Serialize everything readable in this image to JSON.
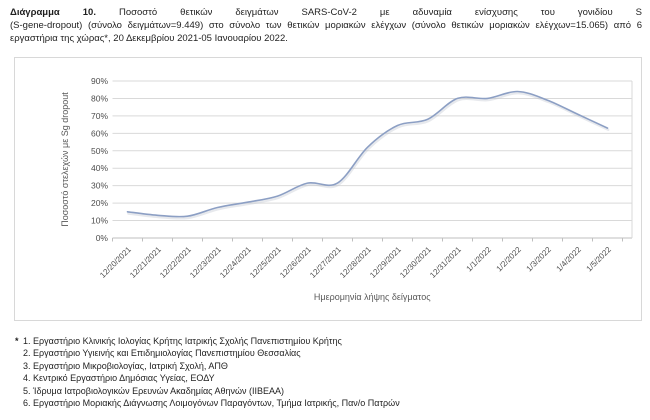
{
  "title": {
    "diagram_label": "Διάγραμμα 10.",
    "line1_rest": "Ποσοστό θετικών δειγμάτων SARS-CoV-2 με αδυναμία ενίσχυσης του γονιδίου S",
    "line2": "(S-gene-dropout) (σύνολο δειγμάτων=9.449) στο σύνολο των θετικών μοριακών ελέγχων (σύνολο θετικών μοριακών ελέγχων=15.065) από 6",
    "line3": "εργαστήρια της χώρας*, 20 Δεκεμβρίου 2021-05 Ιανουαρίου 2022."
  },
  "chart_data": {
    "type": "line",
    "title": "",
    "x": [
      "12/20/2021",
      "12/21/2021",
      "12/22/2021",
      "12/23/2021",
      "12/24/2021",
      "12/25/2021",
      "12/26/2021",
      "12/27/2021",
      "12/28/2021",
      "12/29/2021",
      "12/30/2021",
      "12/31/2021",
      "1/1/2022",
      "1/2/2022",
      "1/3/2022",
      "1/4/2022",
      "1/5/2022"
    ],
    "series": [
      {
        "name": "Ποσοστό στελεχών με Sg dropout",
        "values": [
          15,
          13,
          12.5,
          17.5,
          20.5,
          24,
          31.5,
          31.5,
          52,
          64.5,
          68,
          80,
          80,
          84,
          79,
          71,
          63
        ]
      }
    ],
    "xlabel": "Ημερομηνία λήψης δείγματος",
    "ylabel": "Ποσοστό στελεχών με  Sg dropout",
    "ylim": [
      0,
      90
    ],
    "ytick_step": 10,
    "ytick_labels": [
      "0%",
      "10%",
      "20%",
      "30%",
      "40%",
      "50%",
      "60%",
      "70%",
      "80%",
      "90%"
    ],
    "grid": true,
    "legend_position": "none",
    "smooth": true,
    "colors": {
      "line": "#8C9FC4",
      "line_shadow": "#b9bfca",
      "gridline": "#D9D9D9",
      "axis": "#BFBFBF",
      "tick_label": "#4d4d4d",
      "axis_title": "#595959"
    }
  },
  "footnotes": {
    "marker": "*",
    "items": [
      "1. Εργαστήριο Κλινικής Ιολογίας Κρήτης Ιατρικής Σχολής Πανεπιστημίου Κρήτης",
      "2. Εργαστήριο Υγιεινής και Επιδημιολογίας Πανεπιστημίου Θεσσαλίας",
      "3. Εργαστήριο Μικροβιολογίας, Ιατρική Σχολή, ΑΠΘ",
      "4. Κεντρικό Εργαστήριο Δημόσιας Υγείας, ΕΟΔΥ",
      "5. Ίδρυμα Ιατροβιολογικών Ερευνών Ακαδημίας Αθηνών (ΙΙΒΕΑΑ)",
      "6. Εργαστήριο Μοριακής Διάγνωσης Λοιμογόνων Παραγόντων, Τμήμα Ιατρικής, Παν/ο Πατρών"
    ]
  }
}
